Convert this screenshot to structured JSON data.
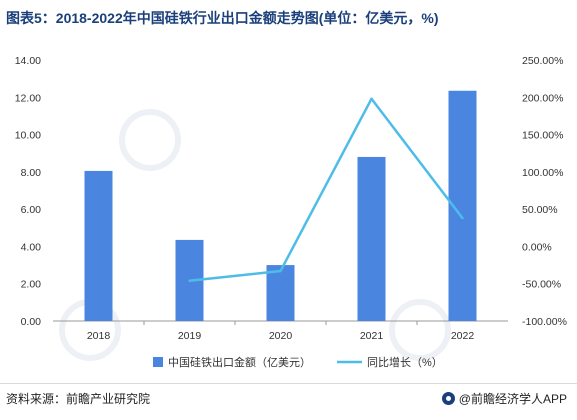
{
  "title": "图表5：2018-2022年中国硅铁行业出口金额走势图(单位：亿美元，%)",
  "footer": {
    "source": "资料来源：前瞻产业研究院",
    "brand": "@前瞻经济学人APP"
  },
  "colors": {
    "bar": "#4a86e0",
    "line": "#4dbde8",
    "title": "#1a3f7a",
    "axis": "#999999"
  },
  "chart_data": {
    "type": "bar",
    "categories": [
      "2018",
      "2019",
      "2020",
      "2021",
      "2022"
    ],
    "series": [
      {
        "name": "中国硅铁出口金额（亿美元）",
        "type": "bar",
        "axis": "left",
        "values": [
          8.05,
          4.35,
          3.0,
          8.8,
          12.35
        ]
      },
      {
        "name": "同比增长（%）",
        "type": "line",
        "axis": "right",
        "values": [
          null,
          -46.0,
          -33.0,
          198.0,
          38.0
        ]
      }
    ],
    "y_left": {
      "lim": [
        0,
        14
      ],
      "ticks": [
        "0.00",
        "2.00",
        "4.00",
        "6.00",
        "8.00",
        "10.00",
        "12.00",
        "14.00"
      ]
    },
    "y_right": {
      "lim": [
        -100,
        250
      ],
      "ticks": [
        "-100.00%",
        "-50.00%",
        "0.00%",
        "50.00%",
        "100.00%",
        "150.00%",
        "200.00%",
        "250.00%"
      ]
    },
    "grid": false,
    "legend_position": "bottom"
  }
}
